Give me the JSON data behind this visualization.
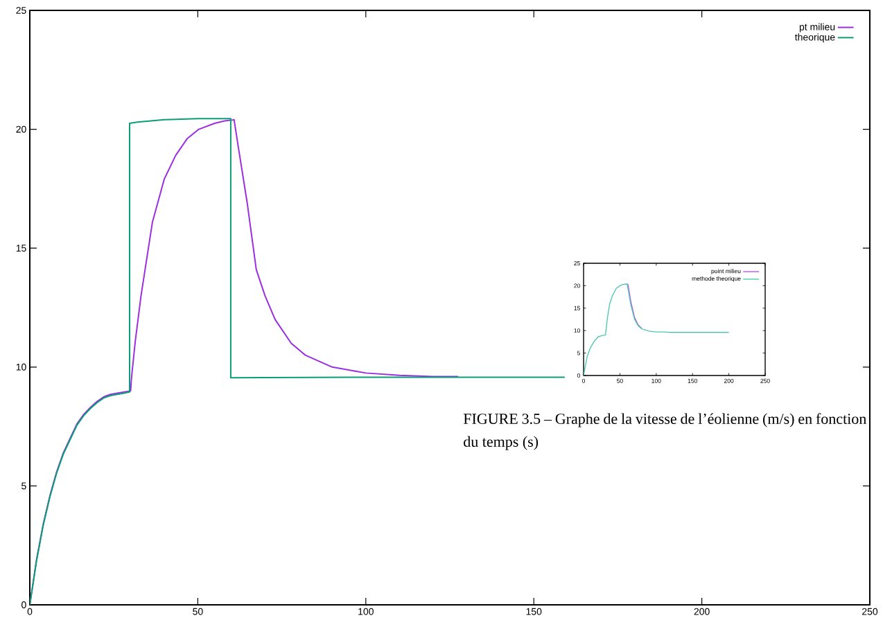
{
  "chart_data": [
    {
      "type": "line",
      "xlim": [
        0,
        250
      ],
      "ylim": [
        0,
        25
      ],
      "xticks": [
        0,
        50,
        100,
        150,
        200,
        250
      ],
      "yticks": [
        0,
        5,
        10,
        15,
        20,
        25
      ],
      "legend": "top right",
      "series": [
        {
          "name": "pt milieu",
          "color": "#9b2ee0",
          "x": [
            0,
            2,
            4,
            6,
            8,
            10,
            12,
            14,
            16,
            18,
            20,
            22,
            24,
            26,
            28,
            30,
            30.3,
            31.4,
            33.1,
            36.5,
            40,
            43.4,
            46.8,
            50.3,
            55,
            58,
            60.8,
            62,
            64.7,
            67.4,
            70,
            73,
            77.8,
            82,
            90,
            100,
            110,
            120,
            127.5
          ],
          "values": [
            0,
            1.9,
            3.4,
            4.6,
            5.6,
            6.4,
            7.0,
            7.6,
            8.0,
            8.3,
            8.55,
            8.75,
            8.85,
            8.9,
            8.95,
            9.0,
            9.6,
            11.1,
            13.0,
            16.1,
            17.9,
            18.9,
            19.6,
            20.0,
            20.25,
            20.35,
            20.4,
            19.3,
            16.9,
            14.1,
            13.0,
            12.0,
            11.0,
            10.5,
            10.0,
            9.75,
            9.65,
            9.6,
            9.6
          ]
        },
        {
          "name": "theorique",
          "color": "#0a9e78",
          "x": [
            0,
            2,
            4,
            6,
            8,
            10,
            12,
            14,
            16,
            18,
            20,
            22,
            24,
            26,
            28,
            29.7,
            29.7,
            32,
            40,
            50,
            59.8,
            59.8,
            70,
            100,
            159.2
          ],
          "values": [
            0,
            1.85,
            3.35,
            4.55,
            5.55,
            6.35,
            6.95,
            7.55,
            7.95,
            8.25,
            8.5,
            8.7,
            8.8,
            8.85,
            8.9,
            8.95,
            20.25,
            20.3,
            20.4,
            20.45,
            20.45,
            9.55,
            9.56,
            9.57,
            9.57
          ]
        }
      ]
    },
    {
      "type": "line",
      "xlim": [
        0,
        250
      ],
      "ylim": [
        0,
        25
      ],
      "xticks": [
        0,
        50,
        100,
        150,
        200,
        250
      ],
      "yticks": [
        0,
        5,
        10,
        15,
        20,
        25
      ],
      "legend": "top right",
      "annotations": [
        "FIGURE 3.5 – Graphe de la vitesse de l’éolienne (m/s) en fonction du temps (s)"
      ],
      "series": [
        {
          "name": "point milieu",
          "color": "#c050f0",
          "x": [
            61,
            65,
            70,
            75,
            80
          ],
          "values": [
            20.4,
            16.5,
            13,
            11.3,
            10.5
          ]
        },
        {
          "name": "methode theorique",
          "color": "#50c8b0",
          "x": [
            0,
            5,
            10,
            15,
            20,
            25,
            30,
            33,
            36,
            40,
            45,
            50,
            55,
            60,
            65,
            70,
            75,
            80,
            90,
            100,
            110,
            120,
            150,
            200
          ],
          "values": [
            0,
            4.3,
            6.4,
            7.7,
            8.6,
            8.9,
            9.0,
            13,
            16,
            17.9,
            19.4,
            20.0,
            20.3,
            20.4,
            15.8,
            12.6,
            11.1,
            10.4,
            9.9,
            9.7,
            9.7,
            9.6,
            9.6,
            9.6
          ]
        }
      ]
    }
  ]
}
